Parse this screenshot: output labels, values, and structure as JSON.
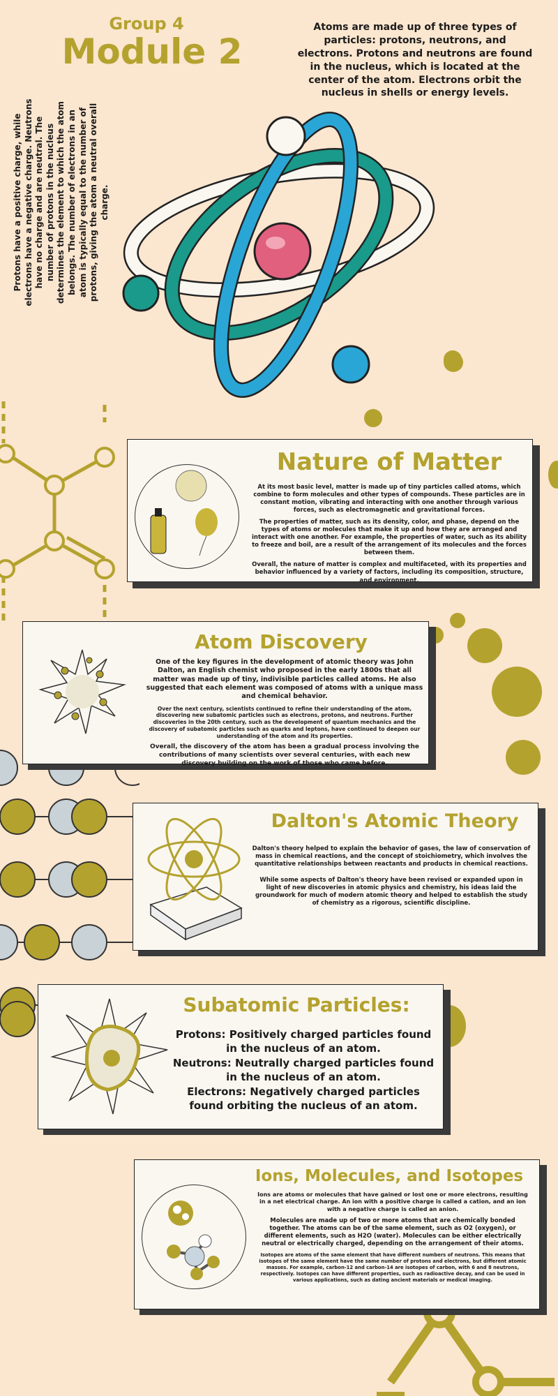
{
  "header": {
    "group": "Group 4",
    "module": "Module 2",
    "intro": "Atoms are made up of three types of particles: protons, neutrons, and electrons. Protons and neutrons are found in the nucleus, which is located at the center of the atom. Electrons orbit the nucleus in shells or energy levels.",
    "side_note": "Protons have a positive charge, while electrons have a negative charge. Neutrons have no charge and are neutral. The number of protons in the nucleus determines the element to which the atom belongs. The number of electrons in an atom is typically equal to the number of protons, giving the atom a neutral overall charge."
  },
  "sections": {
    "nature": {
      "title": "Nature of Matter",
      "p1": "At its most basic level, matter is made up of tiny particles called atoms, which combine to form molecules and other types of compounds. These particles are in constant motion, vibrating and interacting with one another through various forces, such as electromagnetic and gravitational forces.",
      "p2": "The properties of matter, such as its density, color, and phase, depend on the types of atoms or molecules that make it up and how they are arranged and interact with one another. For example, the properties of water, such as its ability to freeze and boil, are a result of the arrangement of its molecules and the forces between them.",
      "p3": "Overall, the nature of matter is complex and multifaceted, with its properties and behavior influenced by a variety of factors, including its composition, structure, and environment."
    },
    "discovery": {
      "title": "Atom Discovery",
      "p1": "One of the key figures in the development of atomic theory was John Dalton, an English chemist who proposed in the early 1800s that all matter was made up of tiny, indivisible particles called atoms. He also suggested that each element was composed of atoms with a unique mass and chemical behavior.",
      "p2": "Over the next century, scientists continued to refine their understanding of the atom, discovering new subatomic particles such as electrons, protons, and neutrons. Further discoveries in the 20th century, such as the development of quantum mechanics and the discovery of subatomic particles such as quarks and leptons, have continued to deepen our understanding of the atom and its properties.",
      "p3": "Overall, the discovery of the atom has been a gradual process involving the contributions of many scientists over several centuries, with each new discovery building on the work of those who came before."
    },
    "dalton": {
      "title": "Dalton's Atomic Theory",
      "p1": "Dalton's theory helped to explain the behavior of gases, the law of conservation of mass in chemical reactions, and the concept of stoichiometry, which involves the quantitative relationships between reactants and products in chemical reactions.",
      "p2": "While some aspects of Dalton's theory have been revised or expanded upon in light of new discoveries in atomic physics and chemistry, his ideas laid the groundwork for much of modern atomic theory and helped to establish the study of chemistry as a rigorous, scientific discipline."
    },
    "subatomic": {
      "title": "Subatomic Particles:",
      "l1": "Protons: Positively charged particles found in the nucleus of an atom.",
      "l2": "Neutrons: Neutrally charged particles found in the nucleus of an atom.",
      "l3": "Electrons: Negatively charged particles found orbiting the nucleus of an atom."
    },
    "ions": {
      "title": "Ions, Molecules, and Isotopes",
      "p1": "Ions are atoms or molecules that have gained or lost one or more electrons, resulting in a net electrical charge. An ion with a positive charge is called a cation, and an ion with a negative charge is called an anion.",
      "p2": "Molecules are made up of two or more atoms that are chemically bonded together. The atoms can be of the same element, such as O2 (oxygen), or different elements, such as H2O (water). Molecules can be either electrically neutral or electrically charged, depending on the arrangement of their atoms.",
      "p3": "Isotopes are atoms of the same element that have different numbers of neutrons. This means that isotopes of the same element have the same number of protons and electrons, but different atomic masses. For example, carbon-12 and carbon-14 are isotopes of carbon, with 6 and 8 neutrons, respectively. Isotopes can have different properties, such as radioactive decay, and can be used in various applications, such as dating ancient materials or medical imaging."
    }
  },
  "colors": {
    "background": "#fbe6cf",
    "accent": "#b4a22f",
    "teal": "#1a9a8a",
    "blue": "#2aa6d6",
    "pink": "#e0607e"
  }
}
